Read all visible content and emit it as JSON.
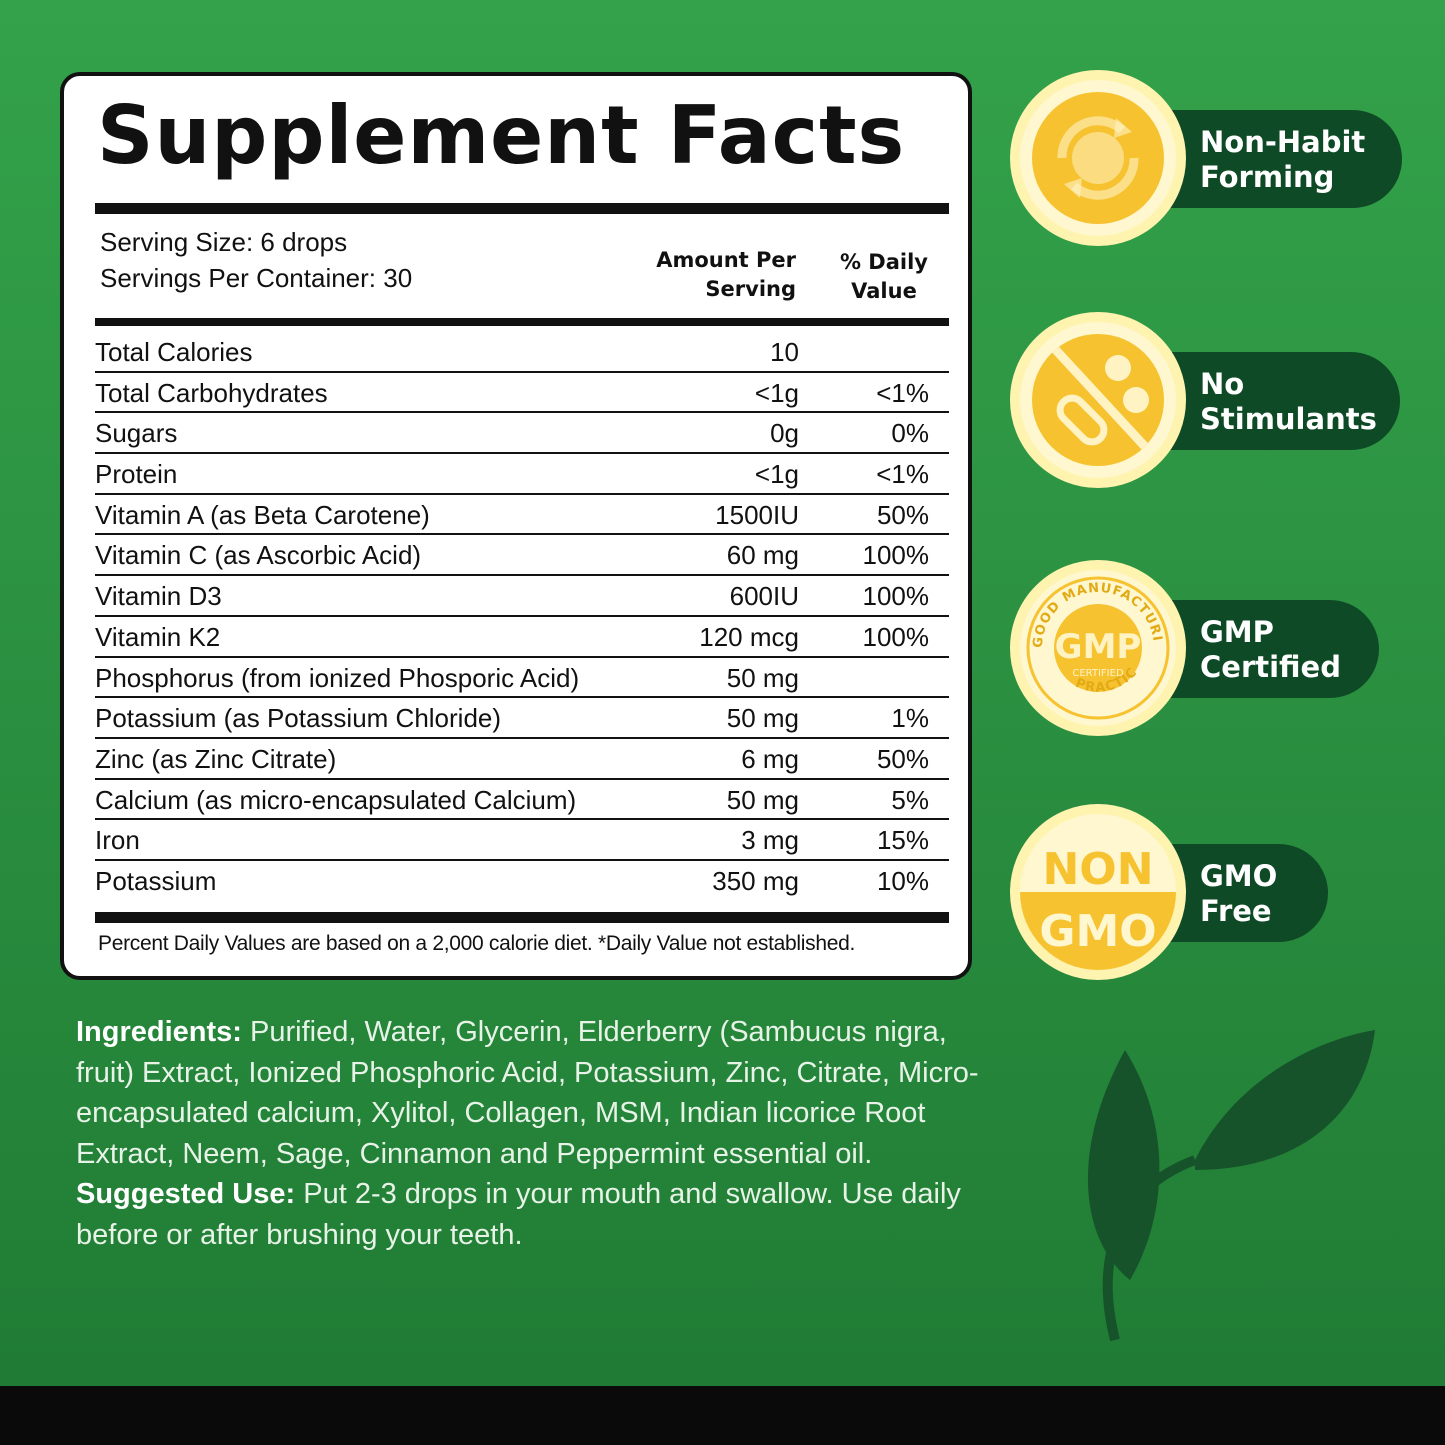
{
  "facts": {
    "title": "Supplement Facts",
    "serving_size": "Serving Size: 6 drops",
    "servings_per_container": "Servings Per Container: 30",
    "col_amount": "Amount Per\nServing",
    "col_dv": "% Daily\nValue",
    "rows": [
      {
        "name": "Total Calories",
        "amount": "10",
        "dv": ""
      },
      {
        "name": "Total Carbohydrates",
        "amount": "<1g",
        "dv": "<1%"
      },
      {
        "name": "Sugars",
        "amount": "0g",
        "dv": "0%"
      },
      {
        "name": "Protein",
        "amount": "<1g",
        "dv": "<1%"
      },
      {
        "name": "Vitamin A (as Beta Carotene)",
        "amount": "1500IU",
        "dv": "50%"
      },
      {
        "name": "Vitamin C (as Ascorbic Acid)",
        "amount": "60 mg",
        "dv": "100%"
      },
      {
        "name": "Vitamin D3",
        "amount": "600IU",
        "dv": "100%"
      },
      {
        "name": "Vitamin K2",
        "amount": "120 mcg",
        "dv": "100%"
      },
      {
        "name": "Phosphorus (from ionized Phosporic Acid)",
        "amount": "50 mg",
        "dv": ""
      },
      {
        "name": "Potassium (as Potassium Chloride)",
        "amount": "50 mg",
        "dv": "1%"
      },
      {
        "name": "Zinc (as Zinc Citrate)",
        "amount": "6 mg",
        "dv": "50%"
      },
      {
        "name": "Calcium (as micro-encapsulated Calcium)",
        "amount": "50 mg",
        "dv": "5%"
      },
      {
        "name": "Iron",
        "amount": "3 mg",
        "dv": "15%"
      },
      {
        "name": "Potassium",
        "amount": "350 mg",
        "dv": "10%"
      }
    ],
    "footnote": "Percent Daily Values are based on a 2,000 calorie diet. *Daily Value not established."
  },
  "ingredients": {
    "label": "Ingredients:",
    "text": " Purified, Water, Glycerin, Elderberry (Sambucus nigra, fruit) Extract, Ionized Phosphoric Acid, Potassium, Zinc, Citrate, Micro-encapsulated calcium, Xylitol, Collagen, MSM, Indian licorice Root Extract, Neem, Sage, Cinnamon and Peppermint essential oil."
  },
  "suggested_use": {
    "label": "Suggested Use:",
    "text": " Put 2-3 drops in your mouth and swallow. Use daily before or after brushing your teeth."
  },
  "badges": [
    {
      "line1": "Non-Habit",
      "line2": "Forming",
      "icon": "recycle-icon"
    },
    {
      "line1": "No",
      "line2": "Stimulants",
      "icon": "no-pills-icon"
    },
    {
      "line1": "GMP",
      "line2": "Certified",
      "icon": "gmp-seal-icon"
    },
    {
      "line1": "GMO",
      "line2": "Free",
      "icon": "non-gmo-icon"
    }
  ],
  "gmp_seal": {
    "top": "GOOD MANUFACTURING",
    "bottom": "PRACTICE",
    "center": "GMP",
    "sub": "CERTIFIED"
  },
  "non_gmo_seal": {
    "top": "NON",
    "bottom": "GMO"
  },
  "colors": {
    "background": "#2b9141",
    "badge_pill": "#0f4a27",
    "badge_gold": "#f6c230"
  }
}
